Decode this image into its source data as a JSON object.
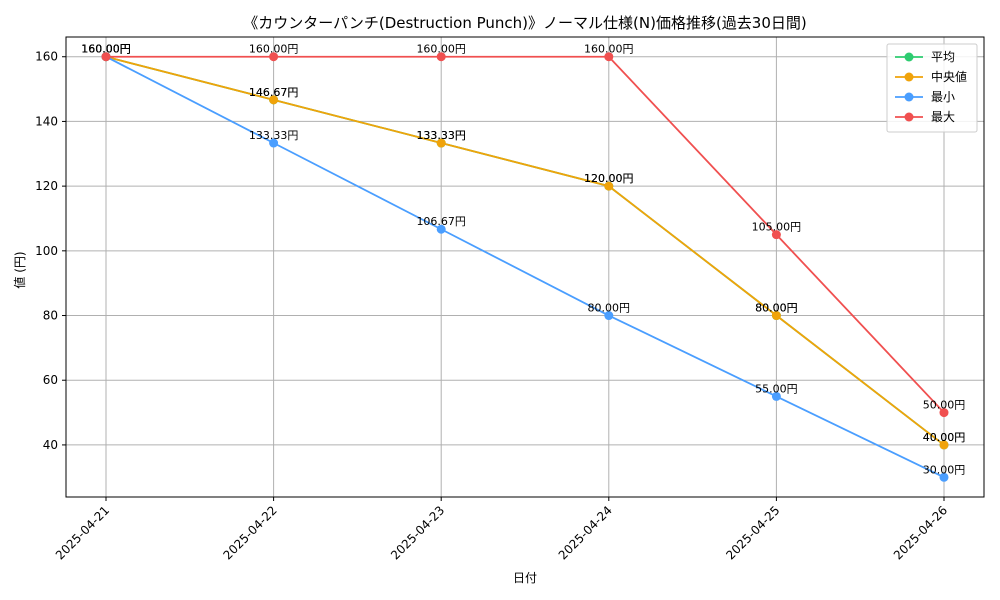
{
  "chart_data": {
    "type": "line",
    "title": "《カウンターパンチ(Destruction Punch)》ノーマル仕様(N)価格推移(過去30日間)",
    "xlabel": "日付",
    "ylabel": "値 (円)",
    "categories": [
      "2025-04-21",
      "2025-04-22",
      "2025-04-23",
      "2025-04-24",
      "2025-04-25",
      "2025-04-26"
    ],
    "ylim": [
      23.9,
      166.1
    ],
    "yticks": [
      40,
      60,
      80,
      100,
      120,
      140,
      160
    ],
    "grid": true,
    "legend_position": "top-right",
    "value_suffix": "円",
    "series": [
      {
        "name": "平均",
        "color": "#2ecc71",
        "values": [
          160.0,
          146.67,
          133.33,
          120.0,
          80.0,
          40.0
        ]
      },
      {
        "name": "中央値",
        "color": "#f0a30a",
        "values": [
          160.0,
          146.67,
          133.33,
          120.0,
          80.0,
          40.0
        ]
      },
      {
        "name": "最小",
        "color": "#4a9eff",
        "values": [
          160.0,
          133.33,
          106.67,
          80.0,
          55.0,
          30.0
        ]
      },
      {
        "name": "最大",
        "color": "#f05050",
        "values": [
          160.0,
          160.0,
          160.0,
          160.0,
          105.0,
          50.0
        ]
      }
    ]
  }
}
